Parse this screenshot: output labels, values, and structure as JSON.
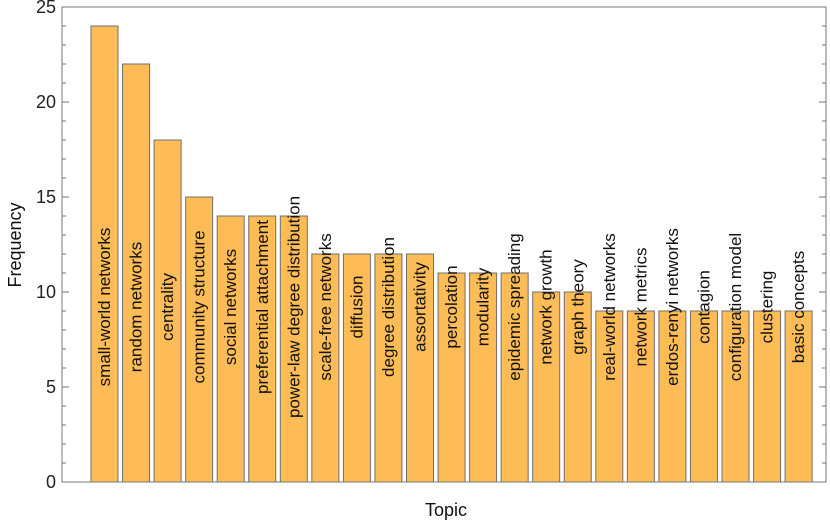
{
  "chart_data": {
    "type": "bar",
    "title": "",
    "xlabel": "Topic",
    "ylabel": "Frequency",
    "ylim": [
      0,
      25
    ],
    "yticks": [
      "0",
      "5",
      "10",
      "15",
      "20",
      "25"
    ],
    "grid": false,
    "bar_color": "#fdbc55",
    "bar_edge_color": "#6f6f6f",
    "categories": [
      "small-world networks",
      "random networks",
      "centrality",
      "community structure",
      "social networks",
      "preferential attachment",
      "power-law degree distribution",
      "scale-free networks",
      "diffusion",
      "degree distribution",
      "assortativity",
      "percolation",
      "modularity",
      "epidemic spreading",
      "network growth",
      "graph theory",
      "real-world networks",
      "network metrics",
      "erdos-renyi networks",
      "contagion",
      "configuration model",
      "clustering",
      "basic concepts"
    ],
    "values": [
      24,
      22,
      18,
      15,
      14,
      14,
      14,
      12,
      12,
      12,
      12,
      11,
      11,
      11,
      10,
      10,
      9,
      9,
      9,
      9,
      9,
      9,
      9
    ]
  }
}
